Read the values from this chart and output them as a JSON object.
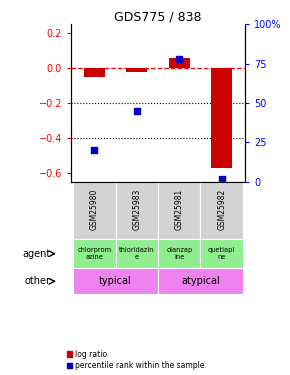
{
  "title": "GDS775 / 838",
  "samples": [
    "GSM25980",
    "GSM25983",
    "GSM25981",
    "GSM25982"
  ],
  "log_ratio": [
    -0.05,
    -0.02,
    0.06,
    -0.57
  ],
  "percentile_rank": [
    20.0,
    45.0,
    78.0,
    2.0
  ],
  "agents": [
    "chlorprom\nazine",
    "thioridazin\ne",
    "olanzap\nine",
    "quetiapi\nne"
  ],
  "typical": [
    0,
    1
  ],
  "atypical": [
    2,
    3
  ],
  "green_color": "#90EE90",
  "typical_color": "#EE82EE",
  "atypical_color": "#EE82EE",
  "bar_color": "#CC0000",
  "scatter_color": "#0000CC",
  "left_ylim": [
    -0.65,
    0.25
  ],
  "right_ylim": [
    0,
    100
  ],
  "left_yticks": [
    0.2,
    0.0,
    -0.2,
    -0.4,
    -0.6
  ],
  "right_yticks": [
    100,
    75,
    50,
    25,
    0
  ],
  "right_ytick_labels": [
    "100%",
    "75",
    "50",
    "25",
    "0"
  ],
  "dotted_lines": [
    -0.2,
    -0.4
  ],
  "bar_width": 0.5,
  "sample_bg_color": "#D3D3D3"
}
